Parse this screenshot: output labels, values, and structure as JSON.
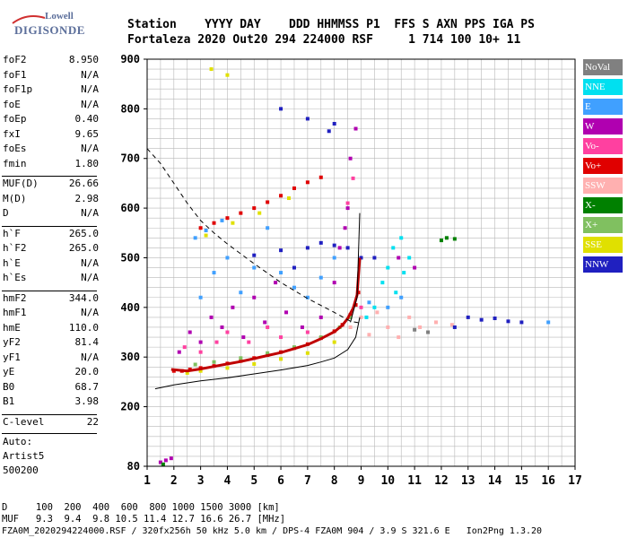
{
  "logo": {
    "top": "Lowell",
    "main": "DIGISONDE"
  },
  "header": {
    "labels_line": "Station    YYYY DAY    DDD HHMMSS P1  FFS S AXN PPS IGA PS",
    "values_line": "Fortaleza 2020 Out20 294 224000 RSF     1 714 100 10+ 11"
  },
  "params": [
    {
      "k": "foF2",
      "v": "8.950"
    },
    {
      "k": "foF1",
      "v": "N/A"
    },
    {
      "k": "foF1p",
      "v": "N/A"
    },
    {
      "k": "foE",
      "v": "N/A"
    },
    {
      "k": "foEp",
      "v": "0.40"
    },
    {
      "k": "fxI",
      "v": "9.65"
    },
    {
      "k": "foEs",
      "v": "N/A"
    },
    {
      "k": "fmin",
      "v": "1.80"
    },
    {
      "k": "MUF(D)",
      "v": "26.66"
    },
    {
      "k": "M(D)",
      "v": "2.98"
    },
    {
      "k": "D",
      "v": "N/A"
    },
    {
      "k": "h`F",
      "v": "265.0"
    },
    {
      "k": "h`F2",
      "v": "265.0"
    },
    {
      "k": "h`E",
      "v": "N/A"
    },
    {
      "k": "h`Es",
      "v": "N/A"
    },
    {
      "k": "hmF2",
      "v": "344.0"
    },
    {
      "k": "hmF1",
      "v": "N/A"
    },
    {
      "k": "hmE",
      "v": "110.0"
    },
    {
      "k": "yF2",
      "v": "81.4"
    },
    {
      "k": "yF1",
      "v": "N/A"
    },
    {
      "k": "yE",
      "v": "20.0"
    },
    {
      "k": "B0",
      "v": "68.7"
    },
    {
      "k": "B1",
      "v": "3.98"
    },
    {
      "k": "C-level",
      "v": "22"
    }
  ],
  "auto": [
    "Auto:",
    "Artist5",
    "500200"
  ],
  "legend": [
    {
      "label": "NoVal",
      "color": "#808080"
    },
    {
      "label": "NNE",
      "color": "#00e0f0"
    },
    {
      "label": "E",
      "color": "#40a0ff"
    },
    {
      "label": "W",
      "color": "#b000b0"
    },
    {
      "label": "Vo-",
      "color": "#ff40a0"
    },
    {
      "label": "Vo+",
      "color": "#e00000"
    },
    {
      "label": "SSW",
      "color": "#ffb0b0"
    },
    {
      "label": "X-",
      "color": "#008000"
    },
    {
      "label": "X+",
      "color": "#80c060"
    },
    {
      "label": "SSE",
      "color": "#e0e000"
    },
    {
      "label": "NNW",
      "color": "#2020c0"
    }
  ],
  "chart_data": {
    "type": "scatter",
    "title": "",
    "xlabel": "",
    "ylabel": "",
    "xlim": [
      1,
      17
    ],
    "ylim": [
      80,
      900
    ],
    "x_ticks": [
      "1",
      "2",
      "3",
      "4",
      "5",
      "6",
      "7",
      "8",
      "9",
      "10",
      "11",
      "12",
      "13",
      "14",
      "15",
      "16",
      "17"
    ],
    "y_ticks": [
      "80",
      "200",
      "300",
      "400",
      "500",
      "600",
      "700",
      "800",
      "900"
    ],
    "y_ticks_values": [
      80,
      200,
      300,
      400,
      500,
      600,
      700,
      800,
      900
    ],
    "grid": true,
    "series": [
      {
        "name": "Vo+",
        "color": "#e00000",
        "points": [
          [
            2.0,
            272
          ],
          [
            2.3,
            272
          ],
          [
            2.6,
            275
          ],
          [
            3.0,
            278
          ],
          [
            3.5,
            282
          ],
          [
            4.0,
            287
          ],
          [
            4.5,
            292
          ],
          [
            5.0,
            298
          ],
          [
            5.5,
            304
          ],
          [
            6.0,
            310
          ],
          [
            6.5,
            318
          ],
          [
            7.0,
            326
          ],
          [
            7.5,
            338
          ],
          [
            8.0,
            352
          ],
          [
            8.3,
            365
          ],
          [
            8.6,
            385
          ],
          [
            8.8,
            405
          ],
          [
            8.9,
            430
          ],
          [
            3.0,
            560
          ],
          [
            3.5,
            570
          ],
          [
            4.0,
            580
          ],
          [
            4.5,
            590
          ],
          [
            5.0,
            600
          ],
          [
            5.5,
            612
          ],
          [
            6.0,
            625
          ],
          [
            6.5,
            640
          ],
          [
            7.0,
            652
          ],
          [
            7.5,
            662
          ]
        ]
      },
      {
        "name": "X+",
        "color": "#80c060",
        "points": [
          [
            2.8,
            285
          ],
          [
            3.5,
            290
          ],
          [
            4.5,
            298
          ],
          [
            5.5,
            308
          ],
          [
            6.5,
            320
          ],
          [
            7.5,
            340
          ],
          [
            8.2,
            360
          ],
          [
            8.6,
            380
          ]
        ]
      },
      {
        "name": "SSE",
        "color": "#e0e000",
        "points": [
          [
            2.5,
            268
          ],
          [
            3.0,
            272
          ],
          [
            4.0,
            278
          ],
          [
            5.0,
            286
          ],
          [
            6.0,
            296
          ],
          [
            7.0,
            308
          ],
          [
            8.0,
            330
          ],
          [
            3.2,
            545
          ],
          [
            4.2,
            570
          ],
          [
            5.2,
            590
          ],
          [
            6.3,
            620
          ],
          [
            3.4,
            880
          ],
          [
            4.0,
            868
          ]
        ]
      },
      {
        "name": "W",
        "color": "#b000b0",
        "points": [
          [
            2.2,
            310
          ],
          [
            2.6,
            350
          ],
          [
            3.0,
            330
          ],
          [
            3.4,
            380
          ],
          [
            3.8,
            360
          ],
          [
            4.2,
            400
          ],
          [
            4.6,
            340
          ],
          [
            5.0,
            420
          ],
          [
            5.4,
            370
          ],
          [
            5.8,
            450
          ],
          [
            6.2,
            390
          ],
          [
            6.8,
            360
          ],
          [
            7.5,
            380
          ],
          [
            8.0,
            450
          ],
          [
            8.2,
            520
          ],
          [
            8.4,
            560
          ],
          [
            8.5,
            600
          ],
          [
            8.6,
            700
          ],
          [
            8.8,
            760
          ],
          [
            1.5,
            88
          ],
          [
            1.7,
            92
          ],
          [
            1.9,
            96
          ],
          [
            10.4,
            500
          ],
          [
            11.0,
            480
          ]
        ]
      },
      {
        "name": "Vo-",
        "color": "#ff40a0",
        "points": [
          [
            2.4,
            320
          ],
          [
            3.0,
            310
          ],
          [
            3.6,
            330
          ],
          [
            4.0,
            350
          ],
          [
            4.8,
            330
          ],
          [
            5.5,
            360
          ],
          [
            6.0,
            340
          ],
          [
            7.0,
            350
          ],
          [
            8.5,
            610
          ],
          [
            8.7,
            660
          ],
          [
            9.0,
            400
          ]
        ]
      },
      {
        "name": "SSW",
        "color": "#ffb0b0",
        "points": [
          [
            8.6,
            360
          ],
          [
            9.0,
            380
          ],
          [
            9.3,
            345
          ],
          [
            9.6,
            390
          ],
          [
            10.0,
            360
          ],
          [
            10.4,
            340
          ],
          [
            10.8,
            380
          ],
          [
            11.2,
            360
          ],
          [
            11.8,
            370
          ],
          [
            12.4,
            365
          ]
        ]
      },
      {
        "name": "NNE",
        "color": "#00e0f0",
        "points": [
          [
            9.5,
            400
          ],
          [
            9.8,
            450
          ],
          [
            10.0,
            480
          ],
          [
            10.2,
            520
          ],
          [
            10.5,
            540
          ],
          [
            10.3,
            430
          ],
          [
            10.6,
            470
          ],
          [
            10.8,
            500
          ],
          [
            9.2,
            380
          ]
        ]
      },
      {
        "name": "E",
        "color": "#40a0ff",
        "points": [
          [
            3.0,
            420
          ],
          [
            3.5,
            470
          ],
          [
            4.0,
            500
          ],
          [
            4.5,
            430
          ],
          [
            5.0,
            480
          ],
          [
            5.5,
            560
          ],
          [
            6.0,
            470
          ],
          [
            6.5,
            440
          ],
          [
            7.0,
            420
          ],
          [
            7.5,
            460
          ],
          [
            8.0,
            500
          ],
          [
            2.8,
            540
          ],
          [
            3.2,
            555
          ],
          [
            3.8,
            575
          ],
          [
            9.3,
            410
          ],
          [
            10.0,
            400
          ],
          [
            10.5,
            420
          ],
          [
            16.0,
            370
          ]
        ]
      },
      {
        "name": "NNW",
        "color": "#2020c0",
        "points": [
          [
            7.0,
            520
          ],
          [
            7.5,
            530
          ],
          [
            8.0,
            525
          ],
          [
            8.5,
            520
          ],
          [
            9.0,
            500
          ],
          [
            9.5,
            500
          ],
          [
            6.0,
            515
          ],
          [
            5.0,
            505
          ],
          [
            6.5,
            480
          ],
          [
            13.0,
            380
          ],
          [
            13.5,
            375
          ],
          [
            14.0,
            378
          ],
          [
            14.5,
            372
          ],
          [
            15.0,
            370
          ],
          [
            12.5,
            360
          ],
          [
            6.0,
            800
          ],
          [
            7.0,
            780
          ],
          [
            8.0,
            770
          ],
          [
            7.8,
            755
          ]
        ]
      },
      {
        "name": "X-",
        "color": "#008000",
        "points": [
          [
            1.6,
            84
          ],
          [
            12.0,
            535
          ],
          [
            12.2,
            540
          ],
          [
            12.5,
            538
          ]
        ]
      },
      {
        "name": "NoVal",
        "color": "#808080",
        "points": [
          [
            11.0,
            355
          ],
          [
            11.5,
            350
          ]
        ]
      }
    ],
    "profile_curve": [
      [
        8.95,
        344
      ],
      [
        8.95,
        400
      ],
      [
        8.94,
        460
      ],
      [
        8.93,
        520
      ],
      [
        8.92,
        590
      ],
      [
        8.9,
        340
      ],
      [
        8.8,
        320
      ],
      [
        8.5,
        306
      ],
      [
        8.0,
        295
      ],
      [
        7.0,
        282
      ],
      [
        6.0,
        274
      ],
      [
        5.0,
        268
      ],
      [
        4.0,
        263
      ],
      [
        3.0,
        259
      ],
      [
        2.0,
        256
      ],
      [
        1.5,
        254
      ]
    ],
    "trace_fit": [
      [
        1.9,
        275
      ],
      [
        2.5,
        272
      ],
      [
        3.0,
        276
      ],
      [
        3.5,
        281
      ],
      [
        4.0,
        286
      ],
      [
        4.5,
        291
      ],
      [
        5.0,
        297
      ],
      [
        5.5,
        303
      ],
      [
        6.0,
        309
      ],
      [
        6.5,
        317
      ],
      [
        7.0,
        325
      ],
      [
        7.5,
        337
      ],
      [
        8.0,
        351
      ],
      [
        8.3,
        364
      ],
      [
        8.5,
        378
      ],
      [
        8.7,
        398
      ],
      [
        8.85,
        425
      ],
      [
        8.95,
        500
      ]
    ],
    "lower_solid": [
      [
        1.3,
        236
      ],
      [
        2.0,
        244
      ],
      [
        3.0,
        252
      ],
      [
        4.0,
        258
      ],
      [
        5.0,
        266
      ],
      [
        6.0,
        274
      ],
      [
        7.0,
        283
      ],
      [
        7.5,
        290
      ],
      [
        8.0,
        298
      ],
      [
        8.5,
        315
      ],
      [
        8.8,
        340
      ],
      [
        8.95,
        380
      ]
    ],
    "dashed": [
      [
        1.0,
        720
      ],
      [
        1.5,
        690
      ],
      [
        2.0,
        650
      ],
      [
        2.5,
        610
      ],
      [
        3.0,
        575
      ],
      [
        3.5,
        550
      ],
      [
        4.0,
        528
      ],
      [
        5.0,
        488
      ],
      [
        6.0,
        450
      ],
      [
        7.0,
        418
      ],
      [
        8.0,
        390
      ],
      [
        8.6,
        372
      ],
      [
        9.0,
        368
      ]
    ]
  },
  "footer": {
    "d_line": "D     100  200  400  600  800 1000 1500 3000 [km]",
    "muf_line": "MUF   9.3  9.4  9.8 10.5 11.4 12.7 16.6 26.7 [MHz]",
    "file_line": "FZA0M_2020294224000.RSF / 320fx256h 50 kHz 5.0 km / DPS-4 FZA0M 904 / 3.9 S 321.6 E   Ion2Png 1.3.20"
  }
}
